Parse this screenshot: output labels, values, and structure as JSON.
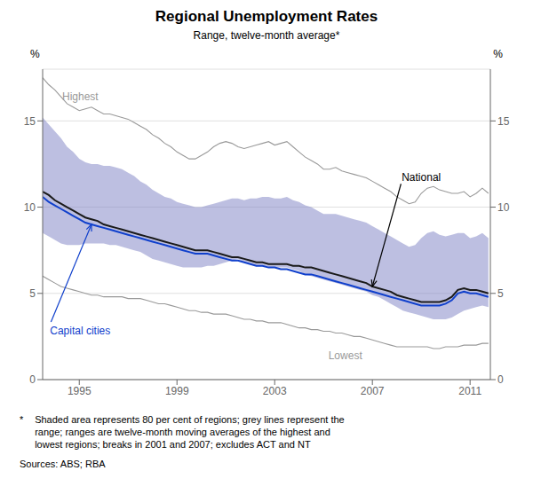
{
  "chart_data": {
    "type": "line",
    "title": "Regional Unemployment Rates",
    "subtitle": "Range, twelve-month average*",
    "ylabel": "%",
    "y2label": "%",
    "footnote_star": "*",
    "footnote": "   Shaded area represents 80 per cent of regions; grey lines represent the\n   range; ranges are twelve-month moving averages of the highest and\n   lowest regions; breaks in 2001 and 2007; excludes ACT and NT",
    "source": "Sources: ABS; RBA",
    "xlim": [
      1993.5,
      2011.83
    ],
    "xticks": [
      1995,
      1999,
      2003,
      2007,
      2011
    ],
    "ylim": [
      0,
      18
    ],
    "yticks": [
      0,
      5,
      10,
      15
    ],
    "y2lim": [
      0,
      18
    ],
    "y2ticks": [
      0,
      5,
      10,
      15
    ],
    "grid": true,
    "x": [
      1993.5,
      1993.75,
      1994.0,
      1994.25,
      1994.5,
      1994.75,
      1995.0,
      1995.25,
      1995.5,
      1995.75,
      1996.0,
      1996.25,
      1996.5,
      1996.75,
      1997.0,
      1997.25,
      1997.5,
      1997.75,
      1998.0,
      1998.25,
      1998.5,
      1998.75,
      1999.0,
      1999.25,
      1999.5,
      1999.75,
      2000.0,
      2000.25,
      2000.5,
      2000.75,
      2001.0,
      2001.25,
      2001.5,
      2001.75,
      2002.0,
      2002.25,
      2002.5,
      2002.75,
      2003.0,
      2003.25,
      2003.5,
      2003.75,
      2004.0,
      2004.25,
      2004.5,
      2004.75,
      2005.0,
      2005.25,
      2005.5,
      2005.75,
      2006.0,
      2006.25,
      2006.5,
      2006.75,
      2007.0,
      2007.25,
      2007.5,
      2007.75,
      2008.0,
      2008.25,
      2008.5,
      2008.75,
      2009.0,
      2009.25,
      2009.5,
      2009.75,
      2010.0,
      2010.25,
      2010.5,
      2010.75,
      2011.0,
      2011.25,
      2011.5,
      2011.75
    ],
    "series": [
      {
        "type": "band",
        "color": "#7b7fc4",
        "lower": [
          8.5,
          8.3,
          8.1,
          7.9,
          7.8,
          7.8,
          7.8,
          7.9,
          7.9,
          7.9,
          7.9,
          7.8,
          7.8,
          7.7,
          7.6,
          7.5,
          7.4,
          7.2,
          7.0,
          6.9,
          6.8,
          6.7,
          6.6,
          6.5,
          6.5,
          6.5,
          6.5,
          6.6,
          6.6,
          6.7,
          6.8,
          6.9,
          7.0,
          6.8,
          6.7,
          6.6,
          6.6,
          6.5,
          6.5,
          6.5,
          6.5,
          6.4,
          6.3,
          6.1,
          6.0,
          5.9,
          5.8,
          5.7,
          5.6,
          5.5,
          5.4,
          5.3,
          5.2,
          5.1,
          4.9,
          4.8,
          4.6,
          4.4,
          4.2,
          4.0,
          3.9,
          3.8,
          3.7,
          3.6,
          3.5,
          3.5,
          3.5,
          3.6,
          3.8,
          4.0,
          4.1,
          4.2,
          4.3,
          4.2
        ],
        "upper": [
          15.2,
          14.8,
          14.4,
          14.0,
          13.5,
          13.2,
          12.8,
          12.6,
          12.5,
          12.5,
          12.4,
          12.4,
          12.3,
          12.2,
          12.0,
          11.8,
          11.5,
          11.3,
          11.0,
          10.8,
          10.6,
          10.5,
          10.3,
          10.2,
          10.1,
          10.0,
          10.0,
          10.1,
          10.2,
          10.3,
          10.4,
          10.5,
          10.5,
          10.4,
          10.5,
          10.5,
          10.6,
          10.6,
          10.5,
          10.5,
          10.6,
          10.4,
          10.3,
          10.1,
          10.0,
          9.8,
          9.6,
          9.6,
          9.6,
          9.5,
          9.4,
          9.3,
          9.2,
          9.1,
          8.9,
          8.7,
          8.5,
          8.3,
          8.1,
          7.9,
          7.7,
          7.8,
          8.2,
          8.5,
          8.6,
          8.4,
          8.3,
          8.4,
          8.5,
          8.5,
          8.2,
          8.3,
          8.5,
          8.2
        ]
      },
      {
        "type": "line",
        "color": "#999999",
        "values": [
          17.5,
          17.1,
          16.8,
          16.4,
          16.0,
          15.8,
          15.6,
          15.7,
          15.8,
          15.6,
          15.4,
          15.4,
          15.3,
          15.2,
          15.1,
          14.9,
          14.7,
          14.5,
          14.2,
          14.0,
          13.7,
          13.5,
          13.2,
          13.0,
          12.8,
          12.8,
          13.0,
          13.2,
          13.5,
          13.7,
          13.8,
          13.7,
          13.5,
          13.4,
          13.5,
          13.6,
          13.7,
          13.8,
          13.6,
          13.7,
          13.8,
          13.5,
          13.2,
          12.9,
          12.7,
          12.5,
          12.2,
          12.2,
          12.3,
          12.1,
          12.0,
          11.9,
          11.8,
          11.7,
          11.5,
          11.3,
          11.1,
          10.9,
          10.6,
          10.4,
          10.2,
          10.3,
          10.8,
          11.1,
          11.2,
          11.0,
          10.9,
          10.8,
          10.8,
          10.9,
          10.6,
          10.8,
          11.1,
          10.8
        ]
      },
      {
        "type": "line",
        "color": "#999999",
        "values": [
          6.0,
          5.8,
          5.6,
          5.4,
          5.3,
          5.2,
          5.1,
          5.0,
          4.9,
          4.9,
          4.8,
          4.8,
          4.8,
          4.8,
          4.7,
          4.7,
          4.7,
          4.6,
          4.5,
          4.4,
          4.4,
          4.3,
          4.2,
          4.1,
          4.0,
          4.0,
          3.9,
          3.9,
          3.8,
          3.8,
          3.8,
          3.7,
          3.6,
          3.5,
          3.5,
          3.4,
          3.4,
          3.3,
          3.3,
          3.3,
          3.2,
          3.1,
          3.0,
          3.0,
          2.9,
          2.9,
          2.8,
          2.8,
          2.7,
          2.7,
          2.6,
          2.5,
          2.5,
          2.4,
          2.3,
          2.2,
          2.1,
          2.0,
          1.9,
          1.9,
          1.9,
          1.9,
          1.9,
          1.9,
          1.8,
          1.8,
          1.9,
          1.9,
          1.9,
          2.0,
          2.0,
          2.0,
          2.1,
          2.1
        ]
      },
      {
        "type": "line",
        "color": "#1a1a1a",
        "values": [
          10.9,
          10.7,
          10.4,
          10.2,
          10.0,
          9.8,
          9.6,
          9.4,
          9.3,
          9.2,
          9.0,
          8.9,
          8.8,
          8.7,
          8.6,
          8.5,
          8.4,
          8.3,
          8.2,
          8.1,
          8.0,
          7.9,
          7.8,
          7.7,
          7.6,
          7.5,
          7.5,
          7.5,
          7.4,
          7.3,
          7.2,
          7.1,
          7.1,
          7.0,
          6.9,
          6.8,
          6.8,
          6.7,
          6.7,
          6.7,
          6.7,
          6.6,
          6.6,
          6.5,
          6.5,
          6.4,
          6.3,
          6.2,
          6.1,
          6.0,
          5.9,
          5.8,
          5.7,
          5.6,
          5.4,
          5.3,
          5.2,
          5.1,
          4.9,
          4.8,
          4.7,
          4.6,
          4.5,
          4.5,
          4.5,
          4.5,
          4.6,
          4.8,
          5.2,
          5.3,
          5.2,
          5.2,
          5.1,
          5.0
        ]
      },
      {
        "type": "line",
        "color": "#1040cc",
        "values": [
          10.6,
          10.3,
          10.1,
          9.9,
          9.7,
          9.5,
          9.3,
          9.1,
          9.0,
          8.9,
          8.8,
          8.7,
          8.6,
          8.5,
          8.4,
          8.3,
          8.2,
          8.1,
          8.0,
          7.9,
          7.8,
          7.7,
          7.6,
          7.5,
          7.4,
          7.3,
          7.3,
          7.3,
          7.2,
          7.1,
          7.0,
          6.9,
          6.9,
          6.8,
          6.7,
          6.6,
          6.6,
          6.5,
          6.5,
          6.4,
          6.4,
          6.3,
          6.2,
          6.1,
          6.1,
          6.0,
          5.9,
          5.8,
          5.7,
          5.6,
          5.5,
          5.4,
          5.3,
          5.2,
          5.1,
          5.0,
          4.9,
          4.8,
          4.7,
          4.6,
          4.5,
          4.4,
          4.3,
          4.3,
          4.3,
          4.3,
          4.4,
          4.6,
          5.0,
          5.1,
          5.0,
          5.0,
          4.9,
          4.8
        ]
      }
    ],
    "annotations": [
      {
        "text": "Highest",
        "x": 1994.3,
        "y": 16.2,
        "color": "#999999"
      },
      {
        "text": "Lowest",
        "x": 2005.2,
        "y": 1.2,
        "color": "#999999"
      },
      {
        "text": "National",
        "x": 2008.2,
        "y": 11.5,
        "color": "#000000",
        "arrow_to": {
          "x": 2007.0,
          "y": 5.4
        }
      },
      {
        "text": "Capital cities",
        "x": 1993.8,
        "y": 3.2,
        "color": "#1040cc",
        "arrow_to": {
          "x": 1995.5,
          "y": 9.0
        }
      }
    ]
  }
}
